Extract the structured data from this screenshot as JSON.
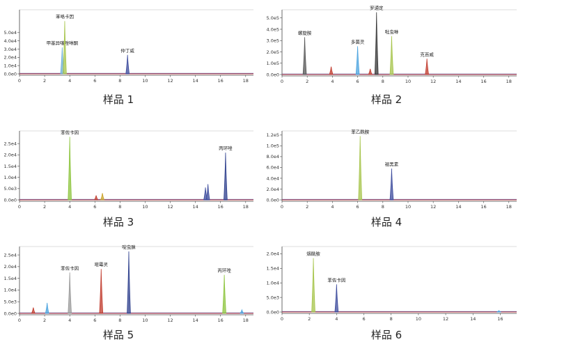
{
  "chart_data": [
    {
      "type": "line",
      "caption": "样品 1",
      "xlim": [
        0,
        18.4
      ],
      "x_ticks": [
        0,
        2,
        4,
        6,
        8,
        10,
        12,
        14,
        16,
        18
      ],
      "ylim": [
        0,
        7.6
      ],
      "y_ticks": [
        0,
        1,
        2,
        3,
        4,
        5
      ],
      "y_tick_labels": [
        "0.0e0",
        "1.0e4",
        "2.0e4",
        "3.0e4",
        "4.0e4",
        "5.0e4"
      ],
      "peaks": [
        {
          "x": 3.4,
          "height": 3.2,
          "color": "#6baed6",
          "label": "甲基异噻唑啉酮"
        },
        {
          "x": 3.6,
          "height": 6.4,
          "color": "#a6c44a",
          "label": "苯咯卡因"
        },
        {
          "x": 8.6,
          "height": 2.3,
          "color": "#3b4a9c",
          "label": "仲丁威"
        }
      ]
    },
    {
      "type": "line",
      "caption": "样品 2",
      "xlim": [
        0,
        18.4
      ],
      "x_ticks": [
        0,
        2,
        4,
        6,
        8,
        10,
        12,
        14,
        16,
        18
      ],
      "ylim": [
        0,
        5.6
      ],
      "y_ticks": [
        0,
        1,
        2,
        3,
        4,
        5
      ],
      "y_tick_labels": [
        "0.0e0",
        "1.0e5",
        "2.0e5",
        "3.0e5",
        "4.0e5",
        "5.0e5"
      ],
      "peaks": [
        {
          "x": 1.8,
          "height": 3.3,
          "color": "#555555",
          "label": "螺旋胺"
        },
        {
          "x": 3.9,
          "height": 0.7,
          "color": "#c0392b",
          "label": ""
        },
        {
          "x": 6.0,
          "height": 2.5,
          "color": "#4aa3df",
          "label": "多菌灵"
        },
        {
          "x": 7.0,
          "height": 0.5,
          "color": "#c0392b",
          "label": ""
        },
        {
          "x": 7.5,
          "height": 5.5,
          "color": "#333333",
          "label": "罗通定"
        },
        {
          "x": 8.7,
          "height": 3.4,
          "color": "#a6c44a",
          "label": "吡虫啉"
        },
        {
          "x": 11.5,
          "height": 1.4,
          "color": "#c0392b",
          "label": "克百威"
        }
      ]
    },
    {
      "type": "line",
      "caption": "样品 3",
      "xlim": [
        0,
        18.4
      ],
      "x_ticks": [
        0,
        2,
        4,
        6,
        8,
        10,
        12,
        14,
        16,
        18
      ],
      "ylim": [
        0,
        3.0
      ],
      "y_ticks": [
        0,
        0.5,
        1,
        1.5,
        2,
        2.5
      ],
      "y_tick_labels": [
        "0.0e0",
        "5.0e3",
        "1.0e4",
        "1.5e4",
        "2.0e4",
        "2.5e4"
      ],
      "peaks": [
        {
          "x": 4.0,
          "height": 2.8,
          "color": "#8cc43c",
          "label": "苯佐卡因"
        },
        {
          "x": 6.1,
          "height": 0.2,
          "color": "#c0392b",
          "label": ""
        },
        {
          "x": 6.6,
          "height": 0.3,
          "color": "#c9a227",
          "label": ""
        },
        {
          "x": 14.8,
          "height": 0.55,
          "color": "#3b4a9c",
          "label": ""
        },
        {
          "x": 15.0,
          "height": 0.7,
          "color": "#3b4a9c",
          "label": ""
        },
        {
          "x": 16.4,
          "height": 2.1,
          "color": "#2c3e8c",
          "label": "丙环唑"
        }
      ]
    },
    {
      "type": "line",
      "caption": "样品 4",
      "xlim": [
        0,
        18.4
      ],
      "x_ticks": [
        0,
        2,
        4,
        6,
        8,
        10,
        12,
        14,
        16,
        18
      ],
      "ylim": [
        0,
        1.25
      ],
      "y_ticks": [
        0,
        0.2,
        0.4,
        0.6,
        0.8,
        1.0,
        1.2
      ],
      "y_tick_labels": [
        "0.0e0",
        "2.0e4",
        "4.0e4",
        "6.0e4",
        "8.0e4",
        "1.0e5",
        "1.2e5"
      ],
      "peaks": [
        {
          "x": 6.2,
          "height": 1.18,
          "color": "#a6c44a",
          "label": "苯乙酰胺"
        },
        {
          "x": 8.7,
          "height": 0.58,
          "color": "#3b4a9c",
          "label": "褪黑素"
        }
      ]
    },
    {
      "type": "line",
      "caption": "样品 5",
      "xlim": [
        0,
        18.4
      ],
      "x_ticks": [
        0,
        2,
        4,
        6,
        8,
        10,
        12,
        14,
        16,
        18
      ],
      "ylim": [
        0,
        2.8
      ],
      "y_ticks": [
        0,
        0.5,
        1,
        1.5,
        2,
        2.5
      ],
      "y_tick_labels": [
        "0.0e0",
        "5.0e3",
        "1.0e4",
        "1.5e4",
        "2.0e4",
        "2.5e4"
      ],
      "peaks": [
        {
          "x": 1.1,
          "height": 0.25,
          "color": "#c0392b",
          "label": ""
        },
        {
          "x": 2.2,
          "height": 0.45,
          "color": "#4aa3df",
          "label": ""
        },
        {
          "x": 4.0,
          "height": 1.75,
          "color": "#999999",
          "label": "苯佐卡因"
        },
        {
          "x": 6.5,
          "height": 1.9,
          "color": "#c0392b",
          "label": "嘧霉灵"
        },
        {
          "x": 8.7,
          "height": 2.65,
          "color": "#2c3e8c",
          "label": "啶虫脒"
        },
        {
          "x": 16.3,
          "height": 1.65,
          "color": "#8cc43c",
          "label": "丙环唑"
        },
        {
          "x": 17.7,
          "height": 0.15,
          "color": "#4aa3df",
          "label": ""
        }
      ]
    },
    {
      "type": "line",
      "caption": "样品 6",
      "xlim": [
        0,
        17.0
      ],
      "x_ticks": [
        0,
        2,
        4,
        6,
        8,
        10,
        12,
        14,
        16
      ],
      "ylim": [
        0,
        2.2
      ],
      "y_ticks": [
        0,
        0.5,
        1.0,
        1.5,
        2.0
      ],
      "y_tick_labels": [
        "0.0e0",
        "5.0e3",
        "1.0e4",
        "1.5e4",
        "2.0e4"
      ],
      "peaks": [
        {
          "x": 2.3,
          "height": 1.85,
          "color": "#a6c44a",
          "label": "烟酰胺"
        },
        {
          "x": 4.0,
          "height": 0.95,
          "color": "#3b4a9c",
          "label": "苯佐卡因"
        },
        {
          "x": 15.9,
          "height": 0.05,
          "color": "#4aa3df",
          "label": ""
        }
      ]
    }
  ]
}
